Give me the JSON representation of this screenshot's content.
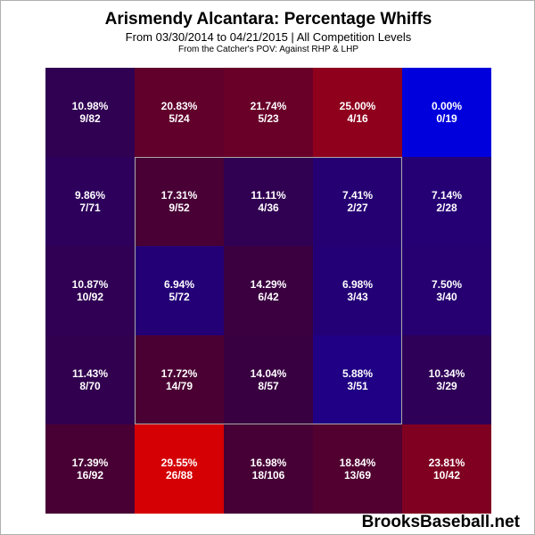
{
  "chart_data": {
    "type": "heatmap",
    "title": "Arismendy Alcantara: Percentage Whiffs",
    "subtitle": "From 03/30/2014 to 04/21/2015 | All Competition Levels",
    "subtitle2": "From the Catcher's POV:  Against RHP & LHP",
    "rows": 5,
    "cols": 5,
    "cells": [
      [
        {
          "pct": "10.98%",
          "count": "9/82",
          "value": 10.98
        },
        {
          "pct": "20.83%",
          "count": "5/24",
          "value": 20.83
        },
        {
          "pct": "21.74%",
          "count": "5/23",
          "value": 21.74
        },
        {
          "pct": "25.00%",
          "count": "4/16",
          "value": 25.0
        },
        {
          "pct": "0.00%",
          "count": "0/19",
          "value": 0.0
        }
      ],
      [
        {
          "pct": "9.86%",
          "count": "7/71",
          "value": 9.86
        },
        {
          "pct": "17.31%",
          "count": "9/52",
          "value": 17.31
        },
        {
          "pct": "11.11%",
          "count": "4/36",
          "value": 11.11
        },
        {
          "pct": "7.41%",
          "count": "2/27",
          "value": 7.41
        },
        {
          "pct": "7.14%",
          "count": "2/28",
          "value": 7.14
        }
      ],
      [
        {
          "pct": "10.87%",
          "count": "10/92",
          "value": 10.87
        },
        {
          "pct": "6.94%",
          "count": "5/72",
          "value": 6.94
        },
        {
          "pct": "14.29%",
          "count": "6/42",
          "value": 14.29
        },
        {
          "pct": "6.98%",
          "count": "3/43",
          "value": 6.98
        },
        {
          "pct": "7.50%",
          "count": "3/40",
          "value": 7.5
        }
      ],
      [
        {
          "pct": "11.43%",
          "count": "8/70",
          "value": 11.43
        },
        {
          "pct": "17.72%",
          "count": "14/79",
          "value": 17.72
        },
        {
          "pct": "14.04%",
          "count": "8/57",
          "value": 14.04
        },
        {
          "pct": "5.88%",
          "count": "3/51",
          "value": 5.88
        },
        {
          "pct": "10.34%",
          "count": "3/29",
          "value": 10.34
        }
      ],
      [
        {
          "pct": "17.39%",
          "count": "16/92",
          "value": 17.39
        },
        {
          "pct": "29.55%",
          "count": "26/88",
          "value": 29.55
        },
        {
          "pct": "16.98%",
          "count": "18/106",
          "value": 16.98
        },
        {
          "pct": "18.84%",
          "count": "13/69",
          "value": 18.84
        },
        {
          "pct": "23.81%",
          "count": "10/42",
          "value": 23.81
        }
      ]
    ],
    "color_scale": {
      "low": "#0000dd",
      "high": "#dd0000",
      "min": 0,
      "max": 30
    },
    "strike_zone_border": "#aaaaaa"
  },
  "watermark": "BrooksBaseball.net"
}
